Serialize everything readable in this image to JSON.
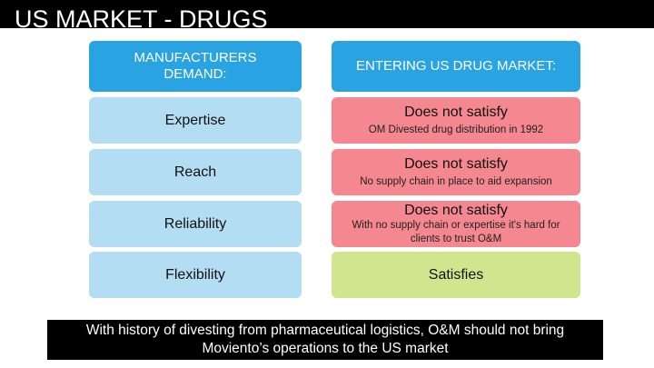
{
  "title": "US MARKET - DRUGS",
  "left_header": "MANUFACTURERS DEMAND:",
  "right_header": "ENTERING US DRUG MARKET:",
  "rows": [
    {
      "demand": "Expertise",
      "status": "Does not satisfy",
      "note": "OM Divested drug distribution in 1992"
    },
    {
      "demand": "Reach",
      "status": "Does not satisfy",
      "note": "No supply chain in place to aid expansion"
    },
    {
      "demand": "Reliability",
      "status": "Does not satisfy",
      "note": "With no supply chain or expertise it's hard for clients to trust O&M"
    },
    {
      "demand": "Flexibility",
      "status": "Satisfies",
      "note": ""
    }
  ],
  "footer": "With history of divesting from pharmaceutical logistics, O&M should not bring Moviento’s operations to the US market",
  "colors": {
    "header_blue": "#29a3e2",
    "light_blue": "#b3ddf3",
    "not_satisfy_red": "#f4878f",
    "satisfies_green": "#cfe68f"
  }
}
